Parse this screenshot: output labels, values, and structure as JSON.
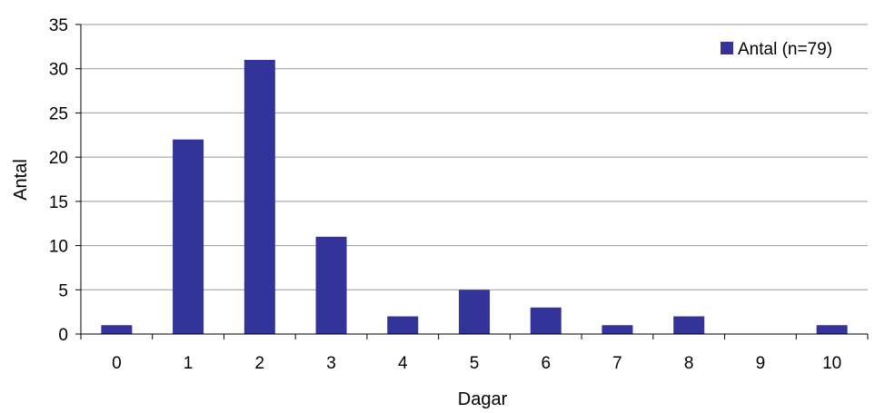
{
  "chart_data": {
    "type": "bar",
    "categories": [
      "0",
      "1",
      "2",
      "3",
      "4",
      "5",
      "6",
      "7",
      "8",
      "9",
      "10"
    ],
    "series": [
      {
        "name": "Antal (n=79)",
        "values": [
          1,
          22,
          31,
          11,
          2,
          5,
          3,
          1,
          2,
          0,
          1
        ],
        "color": "#333399"
      }
    ],
    "xlabel": "Dagar",
    "ylabel": "Antal",
    "ylim": [
      0,
      35
    ],
    "yticks": [
      0,
      5,
      10,
      15,
      20,
      25,
      30,
      35
    ],
    "grid": true,
    "legend_position": "top-right"
  }
}
